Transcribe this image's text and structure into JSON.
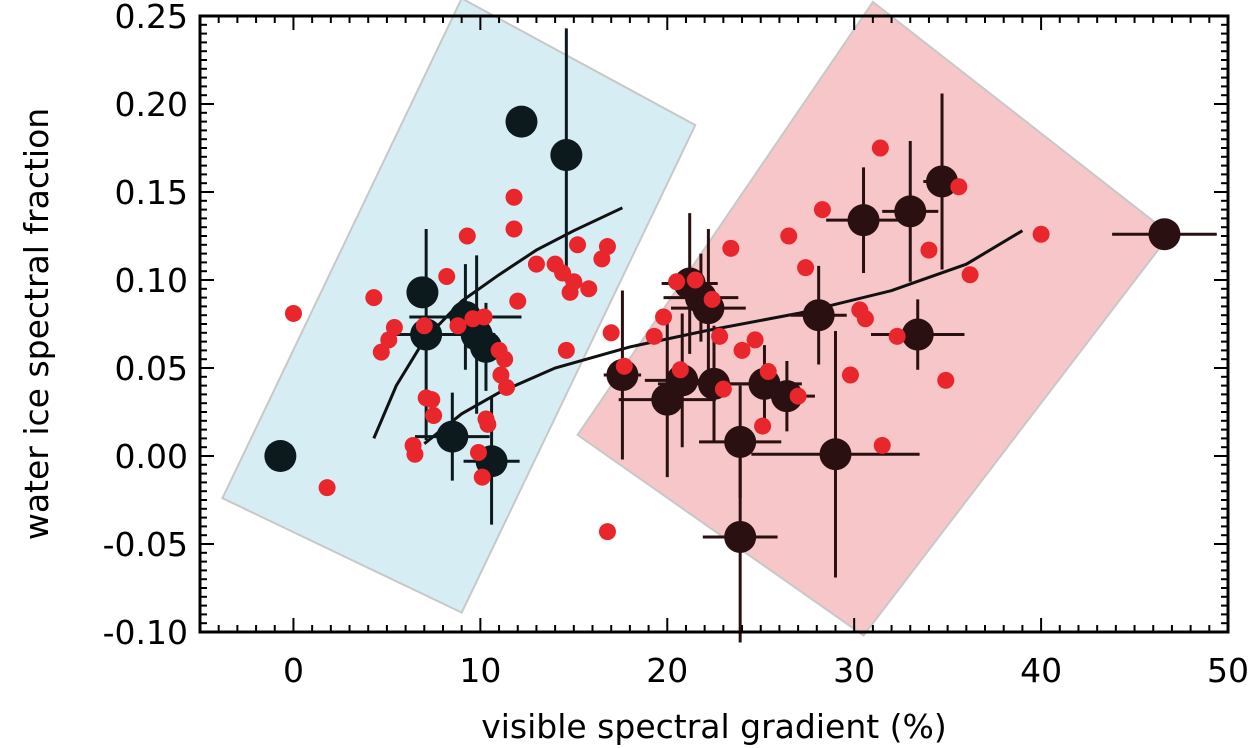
{
  "chart_data": {
    "type": "scatter",
    "xlabel": "visible spectral gradient (%)",
    "ylabel": "water ice spectral fraction",
    "xlim": [
      -5,
      50
    ],
    "ylim": [
      -0.1,
      0.25
    ],
    "x_ticks": [
      0,
      10,
      20,
      30,
      40,
      50
    ],
    "x_tick_labels": [
      "0",
      "10",
      "20",
      "30",
      "40",
      "50"
    ],
    "y_ticks": [
      -0.1,
      -0.05,
      0.0,
      0.05,
      0.1,
      0.15,
      0.2,
      0.25
    ],
    "y_tick_labels": [
      "-0.10",
      "-0.05",
      "0.00",
      "0.05",
      "0.10",
      "0.15",
      "0.20",
      "0.25"
    ],
    "grid": false,
    "colors": {
      "blue_region": "#d6edf4",
      "pink_region": "#f7c6c9",
      "region_edge": "#c8c8c8",
      "large_point_blue_group": "#0c1a1e",
      "large_point_red_group": "#2a1010",
      "small_point": "#e8262c",
      "curve": "#111111"
    },
    "regions": [
      {
        "id": "blue",
        "polygon": [
          [
            -3.8,
            -0.024
          ],
          [
            9.0,
            0.26
          ],
          [
            21.5,
            0.188
          ],
          [
            9.0,
            -0.089
          ]
        ]
      },
      {
        "id": "pink",
        "polygon": [
          [
            15.2,
            0.012
          ],
          [
            31.0,
            0.258
          ],
          [
            46.9,
            0.126
          ],
          [
            30.5,
            -0.102
          ]
        ]
      }
    ],
    "curves": [
      {
        "id": "blue-fit",
        "points": [
          [
            4.3,
            0.01
          ],
          [
            5.5,
            0.04
          ],
          [
            7.0,
            0.066
          ],
          [
            9.0,
            0.088
          ],
          [
            11.0,
            0.103
          ],
          [
            13.0,
            0.117
          ],
          [
            15.0,
            0.128
          ],
          [
            17.6,
            0.141
          ]
        ]
      },
      {
        "id": "red-fit",
        "points": [
          [
            7.0,
            0.007
          ],
          [
            9.0,
            0.024
          ],
          [
            11.0,
            0.036
          ],
          [
            14.0,
            0.05
          ],
          [
            18.0,
            0.062
          ],
          [
            22.0,
            0.071
          ],
          [
            27.0,
            0.081
          ],
          [
            32.0,
            0.094
          ],
          [
            36.0,
            0.109
          ],
          [
            39.0,
            0.128
          ]
        ]
      }
    ],
    "series": [
      {
        "points": [
          {
            "x": -0.7,
            "y": 0.0
          },
          {
            "x": 6.9,
            "y": 0.093,
            "xerr": 0.4,
            "yerr": 0.004
          },
          {
            "x": 7.1,
            "y": 0.069,
            "xerr": 2.3,
            "yerr": 0.06
          },
          {
            "x": 8.5,
            "y": 0.011,
            "xerr": 2.0,
            "yerr": 0.025
          },
          {
            "x": 9.2,
            "y": 0.079,
            "xerr": 3.0,
            "yerr": 0.03
          },
          {
            "x": 9.8,
            "y": 0.069,
            "xerr": 1.0,
            "yerr": 0.045
          },
          {
            "x": 10.3,
            "y": 0.062,
            "xerr": 1.0,
            "yerr": 0.025
          },
          {
            "x": 10.6,
            "y": -0.003,
            "xerr": 1.5,
            "yerr": 0.036
          },
          {
            "x": 12.2,
            "y": 0.19,
            "yerr": 0.004
          },
          {
            "x": 14.6,
            "y": 0.171,
            "yerr": 0.072
          }
        ]
      },
      {
        "points": [
          {
            "x": 17.6,
            "y": 0.046,
            "xerr": 1.0,
            "yerr": 0.048
          },
          {
            "x": 20.0,
            "y": 0.032,
            "xerr": 2.6,
            "yerr": 0.044
          },
          {
            "x": 20.8,
            "y": 0.043,
            "xerr": 2.0,
            "yerr": 0.038
          },
          {
            "x": 21.2,
            "y": 0.098,
            "xerr": 1.5,
            "yerr": 0.04
          },
          {
            "x": 21.8,
            "y": 0.09,
            "xerr": 2.0,
            "yerr": 0.025
          },
          {
            "x": 22.2,
            "y": 0.084,
            "xerr": 2.0,
            "yerr": 0.045
          },
          {
            "x": 22.5,
            "y": 0.041,
            "xerr": 3.0,
            "yerr": 0.033
          },
          {
            "x": 23.9,
            "y": 0.008,
            "xerr": 2.2,
            "yerr": 0.032
          },
          {
            "x": 23.9,
            "y": -0.046,
            "xerr": 2.0,
            "yerr": 0.06
          },
          {
            "x": 25.2,
            "y": 0.041,
            "xerr": 2.0,
            "yerr": 0.022
          },
          {
            "x": 26.4,
            "y": 0.034,
            "xerr": 1.5,
            "yerr": 0.02
          },
          {
            "x": 28.1,
            "y": 0.08,
            "xerr": 1.5,
            "yerr": 0.028
          },
          {
            "x": 29.0,
            "y": 0.001,
            "xerr": 4.5,
            "yerr": 0.07
          },
          {
            "x": 30.5,
            "y": 0.134,
            "xerr": 2.0,
            "yerr": 0.03
          },
          {
            "x": 33.0,
            "y": 0.139,
            "xerr": 1.5,
            "yerr": 0.04
          },
          {
            "x": 33.4,
            "y": 0.069,
            "xerr": 2.5,
            "yerr": 0.02
          },
          {
            "x": 34.7,
            "y": 0.156,
            "xerr": 1.0,
            "yerr": 0.05
          },
          {
            "x": 46.6,
            "y": 0.126,
            "xerr": 2.8,
            "yerr": 0.004
          }
        ]
      },
      {
        "points": [
          {
            "x": 0.0,
            "y": 0.081
          },
          {
            "x": 1.8,
            "y": -0.018
          },
          {
            "x": 4.3,
            "y": 0.09
          },
          {
            "x": 4.7,
            "y": 0.059
          },
          {
            "x": 5.1,
            "y": 0.066
          },
          {
            "x": 5.4,
            "y": 0.073
          },
          {
            "x": 6.4,
            "y": 0.006
          },
          {
            "x": 6.5,
            "y": 0.001
          },
          {
            "x": 7.0,
            "y": 0.074
          },
          {
            "x": 7.1,
            "y": 0.033
          },
          {
            "x": 7.4,
            "y": 0.032
          },
          {
            "x": 7.5,
            "y": 0.023
          },
          {
            "x": 8.2,
            "y": 0.102
          },
          {
            "x": 8.8,
            "y": 0.074
          },
          {
            "x": 9.3,
            "y": 0.125
          },
          {
            "x": 9.6,
            "y": 0.078
          },
          {
            "x": 9.9,
            "y": 0.002
          },
          {
            "x": 10.1,
            "y": -0.012
          },
          {
            "x": 10.2,
            "y": 0.079
          },
          {
            "x": 10.3,
            "y": 0.021
          },
          {
            "x": 10.4,
            "y": 0.018
          },
          {
            "x": 11.0,
            "y": 0.06
          },
          {
            "x": 11.1,
            "y": 0.046
          },
          {
            "x": 11.3,
            "y": 0.055
          },
          {
            "x": 11.4,
            "y": 0.039
          },
          {
            "x": 11.8,
            "y": 0.147
          },
          {
            "x": 11.8,
            "y": 0.129
          },
          {
            "x": 12.0,
            "y": 0.088
          },
          {
            "x": 13.0,
            "y": 0.109
          },
          {
            "x": 14.0,
            "y": 0.109
          },
          {
            "x": 14.4,
            "y": 0.104
          },
          {
            "x": 14.6,
            "y": 0.06
          },
          {
            "x": 14.8,
            "y": 0.093
          },
          {
            "x": 15.0,
            "y": 0.099
          },
          {
            "x": 15.2,
            "y": 0.12
          },
          {
            "x": 15.8,
            "y": 0.095
          },
          {
            "x": 16.5,
            "y": 0.112
          },
          {
            "x": 16.8,
            "y": 0.119
          },
          {
            "x": 17.0,
            "y": 0.07
          },
          {
            "x": 16.8,
            "y": -0.043
          },
          {
            "x": 17.7,
            "y": 0.051
          },
          {
            "x": 19.3,
            "y": 0.068
          },
          {
            "x": 19.8,
            "y": 0.079
          },
          {
            "x": 20.5,
            "y": 0.099
          },
          {
            "x": 20.7,
            "y": 0.049
          },
          {
            "x": 21.5,
            "y": 0.1
          },
          {
            "x": 22.4,
            "y": 0.089
          },
          {
            "x": 22.8,
            "y": 0.068
          },
          {
            "x": 23.0,
            "y": 0.038
          },
          {
            "x": 23.4,
            "y": 0.118
          },
          {
            "x": 24.0,
            "y": 0.06
          },
          {
            "x": 24.7,
            "y": 0.066
          },
          {
            "x": 25.1,
            "y": 0.017
          },
          {
            "x": 25.4,
            "y": 0.048
          },
          {
            "x": 26.5,
            "y": 0.125
          },
          {
            "x": 27.0,
            "y": 0.034
          },
          {
            "x": 27.4,
            "y": 0.107
          },
          {
            "x": 28.3,
            "y": 0.14
          },
          {
            "x": 29.8,
            "y": 0.046
          },
          {
            "x": 30.3,
            "y": 0.083
          },
          {
            "x": 30.6,
            "y": 0.078
          },
          {
            "x": 31.4,
            "y": 0.175
          },
          {
            "x": 31.5,
            "y": 0.006
          },
          {
            "x": 32.3,
            "y": 0.068
          },
          {
            "x": 34.0,
            "y": 0.117
          },
          {
            "x": 34.9,
            "y": 0.043
          },
          {
            "x": 35.6,
            "y": 0.153
          },
          {
            "x": 36.2,
            "y": 0.103
          },
          {
            "x": 40.0,
            "y": 0.126
          }
        ]
      }
    ]
  }
}
